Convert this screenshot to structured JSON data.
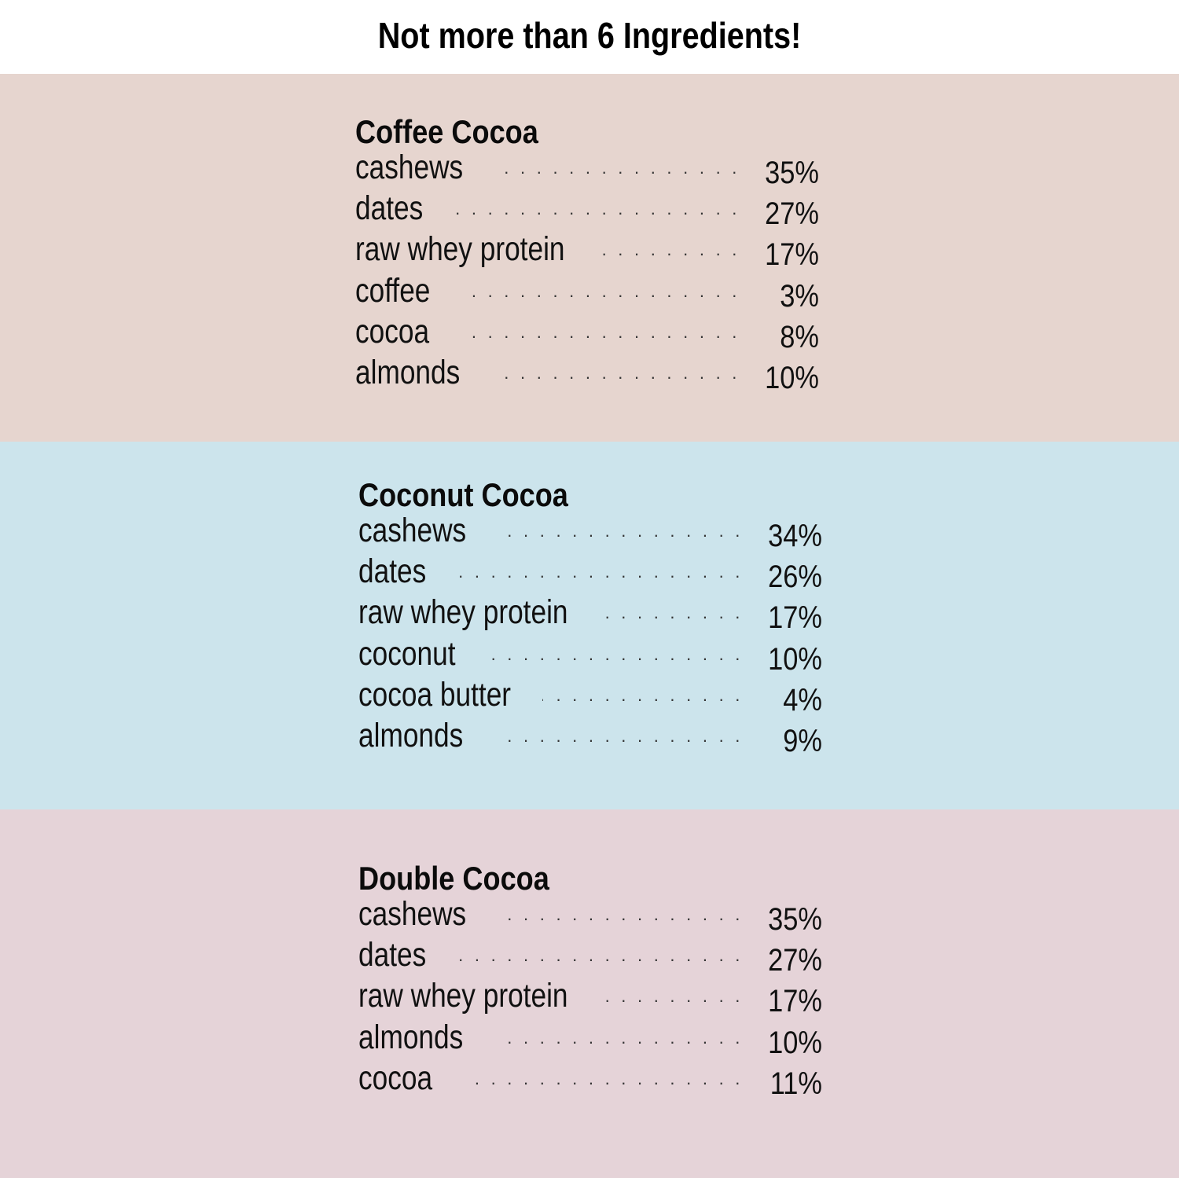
{
  "header": {
    "title": "Not more than 6 Ingredients!"
  },
  "colors": {
    "coffee_cocoa_band": "#e6d5cf",
    "coconut_cocoa_band": "#cce4ec",
    "double_cocoa_band": "#e5d3d8"
  },
  "products": [
    {
      "name": "Coffee Cocoa",
      "ingredients": [
        {
          "name": "cashews",
          "percent": "35%"
        },
        {
          "name": "dates",
          "percent": "27%"
        },
        {
          "name": "raw whey protein",
          "percent": "17%"
        },
        {
          "name": "coffee",
          "percent": "3%"
        },
        {
          "name": "cocoa",
          "percent": "8%"
        },
        {
          "name": "almonds",
          "percent": "10%"
        }
      ]
    },
    {
      "name": "Coconut Cocoa",
      "ingredients": [
        {
          "name": "cashews",
          "percent": "34%"
        },
        {
          "name": "dates",
          "percent": "26%"
        },
        {
          "name": "raw whey protein",
          "percent": "17%"
        },
        {
          "name": "coconut",
          "percent": "10%"
        },
        {
          "name": "cocoa butter",
          "percent": "4%"
        },
        {
          "name": "almonds",
          "percent": "9%"
        }
      ]
    },
    {
      "name": "Double Cocoa",
      "ingredients": [
        {
          "name": "cashews",
          "percent": "35%"
        },
        {
          "name": "dates",
          "percent": "27%"
        },
        {
          "name": "raw whey protein",
          "percent": "17%"
        },
        {
          "name": "almonds",
          "percent": "10%"
        },
        {
          "name": "cocoa",
          "percent": "11%"
        }
      ]
    }
  ]
}
